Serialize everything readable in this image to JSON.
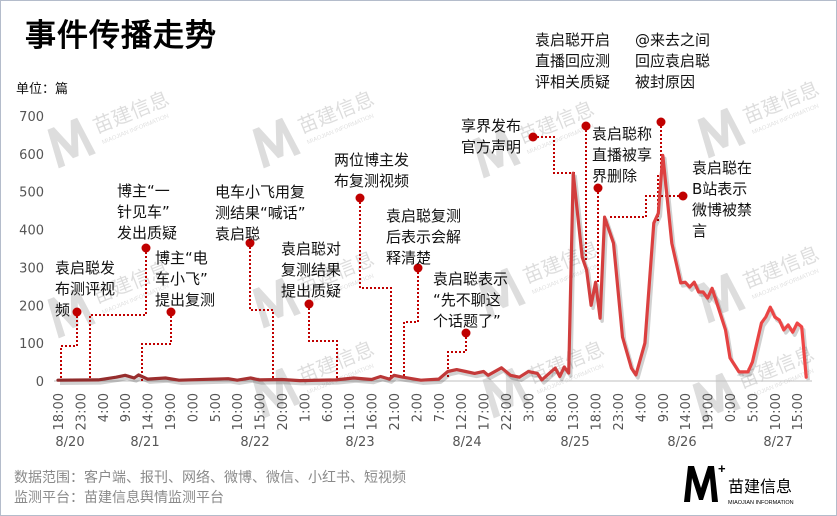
{
  "title": "事件传播走势",
  "unit_label": "单位：篇",
  "footer": {
    "scope": "数据范围：客户端、报刊、网络、微博、微信、小红书、短视频",
    "platform": "监测平台：苗建信息舆情监测平台"
  },
  "logo": {
    "mark": "M+",
    "name": "苗建信息",
    "english": "MIAOJIAN INFORMATION"
  },
  "watermark": {
    "mark": "M+",
    "name": "苗建信息",
    "english": "MIAOJIAN INFORMATION"
  },
  "colors": {
    "line_start": "#8e2b2b",
    "line_end": "#f04646",
    "annotation": "#c00000",
    "axis_text": "#555555"
  },
  "chart_data": {
    "type": "line",
    "title": "事件传播走势",
    "ylabel": "单位：篇",
    "ylim": [
      0,
      700
    ],
    "yticks": [
      0,
      100,
      200,
      300,
      400,
      500,
      600,
      700
    ],
    "x_start": "8/20 18:00",
    "x_tick_labels": [
      "18:00",
      "23:00",
      "4:00",
      "9:00",
      "14:00",
      "19:00",
      "0:00",
      "5:00",
      "10:00",
      "15:00",
      "20:00",
      "1:00",
      "6:00",
      "11:00",
      "16:00",
      "21:00",
      "2:00",
      "7:00",
      "12:00",
      "17:00",
      "22:00",
      "3:00",
      "8:00",
      "13:00",
      "18:00",
      "23:00",
      "4:00",
      "9:00",
      "14:00",
      "19:00",
      "0:00",
      "5:00",
      "10:00",
      "15:00"
    ],
    "date_labels": [
      "8/20",
      "8/21",
      "8/22",
      "8/23",
      "8/24",
      "8/25",
      "8/26",
      "8/27"
    ],
    "grid": false,
    "points": [
      [
        "8/20 18:00",
        2
      ],
      [
        "8/21 03:00",
        3
      ],
      [
        "8/21 07:00",
        10
      ],
      [
        "8/21 09:00",
        15
      ],
      [
        "8/21 11:00",
        8
      ],
      [
        "8/21 12:00",
        16
      ],
      [
        "8/21 14:00",
        5
      ],
      [
        "8/21 18:00",
        8
      ],
      [
        "8/21 21:00",
        2
      ],
      [
        "8/22 08:00",
        6
      ],
      [
        "8/22 10:00",
        2
      ],
      [
        "8/22 13:00",
        8
      ],
      [
        "8/22 15:00",
        3
      ],
      [
        "8/22 20:00",
        4
      ],
      [
        "8/23 00:00",
        1
      ],
      [
        "8/23 08:00",
        3
      ],
      [
        "8/23 12:00",
        8
      ],
      [
        "8/23 16:00",
        4
      ],
      [
        "8/23 18:00",
        12
      ],
      [
        "8/23 20:00",
        5
      ],
      [
        "8/23 21:00",
        15
      ],
      [
        "8/23 23:00",
        10
      ],
      [
        "8/24 03:00",
        2
      ],
      [
        "8/24 07:00",
        5
      ],
      [
        "8/24 09:00",
        25
      ],
      [
        "8/24 11:00",
        30
      ],
      [
        "8/24 13:00",
        25
      ],
      [
        "8/24 15:00",
        20
      ],
      [
        "8/24 17:00",
        25
      ],
      [
        "8/24 18:00",
        15
      ],
      [
        "8/24 21:00",
        35
      ],
      [
        "8/24 23:00",
        15
      ],
      [
        "8/25 01:00",
        10
      ],
      [
        "8/25 03:00",
        25
      ],
      [
        "8/25 05:00",
        20
      ],
      [
        "8/25 06:00",
        3
      ],
      [
        "8/25 09:00",
        34
      ],
      [
        "8/25 10:00",
        12
      ],
      [
        "8/25 11:00",
        37
      ],
      [
        "8/25 12:00",
        21
      ],
      [
        "8/25 13:00",
        549
      ],
      [
        "8/25 15:00",
        327
      ],
      [
        "8/25 16:00",
        293
      ],
      [
        "8/25 17:00",
        200
      ],
      [
        "8/25 18:00",
        261
      ],
      [
        "8/25 19:00",
        166
      ],
      [
        "8/25 20:00",
        433
      ],
      [
        "8/25 22:00",
        364
      ],
      [
        "8/26 00:00",
        116
      ],
      [
        "8/26 02:00",
        34
      ],
      [
        "8/26 03:00",
        16
      ],
      [
        "8/26 05:00",
        100
      ],
      [
        "8/26 07:00",
        417
      ],
      [
        "8/26 08:00",
        443
      ],
      [
        "8/26 09:00",
        596
      ],
      [
        "8/26 11:00",
        364
      ],
      [
        "8/26 13:00",
        259
      ],
      [
        "8/26 14:00",
        261
      ],
      [
        "8/26 15:00",
        248
      ],
      [
        "8/26 16:00",
        261
      ],
      [
        "8/26 17:00",
        235
      ],
      [
        "8/26 18:00",
        235
      ],
      [
        "8/26 19:00",
        219
      ],
      [
        "8/26 20:00",
        245
      ],
      [
        "8/26 23:00",
        135
      ],
      [
        "8/27 00:00",
        61
      ],
      [
        "8/27 02:00",
        24
      ],
      [
        "8/27 04:00",
        24
      ],
      [
        "8/27 05:00",
        50
      ],
      [
        "8/27 07:00",
        153
      ],
      [
        "8/27 08:00",
        169
      ],
      [
        "8/27 09:00",
        195
      ],
      [
        "8/27 10:00",
        169
      ],
      [
        "8/27 11:00",
        161
      ],
      [
        "8/27 12:00",
        135
      ],
      [
        "8/27 13:00",
        148
      ],
      [
        "8/27 14:00",
        129
      ],
      [
        "8/27 15:00",
        153
      ],
      [
        "8/27 16:00",
        143
      ],
      [
        "8/27 17:00",
        10
      ]
    ],
    "annotations": [
      {
        "lines": [
          "袁启聪发",
          "布测评视",
          "频"
        ]
      },
      {
        "lines": [
          "博主“一",
          "针见车”",
          "发出质疑"
        ]
      },
      {
        "lines": [
          "博主“电",
          "车小飞”",
          "提出复测"
        ]
      },
      {
        "lines": [
          "电车小飞用复",
          "测结果“喊话”",
          "袁启聪"
        ]
      },
      {
        "lines": [
          "袁启聪对",
          "复测结果",
          "提出质疑"
        ]
      },
      {
        "lines": [
          "两位博主发",
          "布复测视频"
        ]
      },
      {
        "lines": [
          "袁启聪复测",
          "后表示会解",
          "释清楚"
        ]
      },
      {
        "lines": [
          "袁启聪表示",
          "“先不聊这",
          "个话题了”"
        ]
      },
      {
        "lines": [
          "享界发布",
          "官方声明"
        ]
      },
      {
        "lines": [
          "袁启聪开启",
          "直播回应测",
          "评相关质疑"
        ]
      },
      {
        "lines": [
          "袁启聪称",
          "直播被享",
          "界删除"
        ]
      },
      {
        "lines": [
          "@来去之间",
          "回应袁启聪",
          "被封原因"
        ]
      },
      {
        "lines": [
          "袁启聪在",
          "B站表示",
          "微博被禁",
          "言"
        ]
      }
    ]
  }
}
